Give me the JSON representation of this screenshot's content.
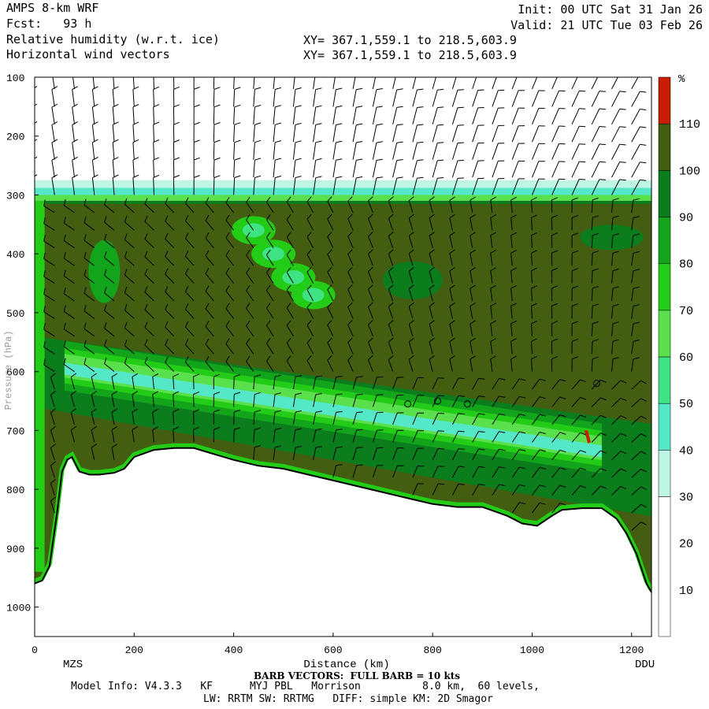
{
  "header": {
    "model": "AMPS 8-km WRF",
    "forecast": "Fcst:   93 h",
    "field1": "Relative humidity (w.r.t. ice)",
    "field2": "Horizontal wind vectors",
    "init": "Init: 00 UTC Sat 31 Jan 26",
    "valid": "Valid: 21 UTC Tue 03 Feb 26",
    "xy1": "XY= 367.1,559.1 to 218.5,603.9",
    "xy2": "XY= 367.1,559.1 to 218.5,603.9"
  },
  "footer": {
    "barb_note": "BARB VECTORS:  FULL BARB = 10 kts",
    "model_info": "Model Info: V4.3.3   KF      MYJ PBL   Morrison          8.0 km,  60 levels,",
    "physics": "LW: RRTM SW: RRTMG   DIFF: simple KM: 2D Smagor"
  },
  "chart_data": {
    "type": "heatmap",
    "title": "Relative humidity (w.r.t. ice)",
    "xlabel": "Distance (km)",
    "ylabel": "Pressure (hPa)",
    "xlim": [
      0,
      1240
    ],
    "ylim": [
      1050,
      100
    ],
    "x_ticks": [
      "0",
      "200",
      "400",
      "600",
      "800",
      "1000",
      "1200"
    ],
    "y_ticks": [
      "100",
      "200",
      "300",
      "400",
      "500",
      "600",
      "700",
      "800",
      "900",
      "1000"
    ],
    "endpoints": {
      "left": "MZS",
      "right": "DDU"
    },
    "colorbar": {
      "unit": "%",
      "ticks": [
        "10",
        "20",
        "30",
        "40",
        "50",
        "60",
        "70",
        "80",
        "90",
        "100",
        "110"
      ],
      "bins": [
        {
          "range": [
            0,
            30
          ],
          "color": "#ffffff"
        },
        {
          "range": [
            30,
            40
          ],
          "color": "#bff5e4"
        },
        {
          "range": [
            40,
            50
          ],
          "color": "#55e8c8"
        },
        {
          "range": [
            50,
            60
          ],
          "color": "#3ee383"
        },
        {
          "range": [
            60,
            70
          ],
          "color": "#59e04c"
        },
        {
          "range": [
            70,
            80
          ],
          "color": "#23cc16"
        },
        {
          "range": [
            80,
            90
          ],
          "color": "#12a51c"
        },
        {
          "range": [
            90,
            100
          ],
          "color": "#0c7d1c"
        },
        {
          "range": [
            100,
            110
          ],
          "color": "#435e10"
        },
        {
          "range": [
            110,
            120
          ],
          "color": "#c81e05"
        }
      ]
    },
    "terrain": [
      [
        0,
        960
      ],
      [
        15,
        955
      ],
      [
        30,
        930
      ],
      [
        45,
        840
      ],
      [
        55,
        770
      ],
      [
        65,
        750
      ],
      [
        75,
        745
      ],
      [
        90,
        770
      ],
      [
        110,
        775
      ],
      [
        130,
        775
      ],
      [
        160,
        772
      ],
      [
        180,
        765
      ],
      [
        200,
        745
      ],
      [
        240,
        733
      ],
      [
        280,
        730
      ],
      [
        320,
        730
      ],
      [
        360,
        740
      ],
      [
        400,
        750
      ],
      [
        450,
        760
      ],
      [
        500,
        765
      ],
      [
        550,
        775
      ],
      [
        600,
        785
      ],
      [
        650,
        795
      ],
      [
        700,
        805
      ],
      [
        750,
        815
      ],
      [
        800,
        825
      ],
      [
        850,
        830
      ],
      [
        900,
        830
      ],
      [
        950,
        845
      ],
      [
        980,
        858
      ],
      [
        1010,
        862
      ],
      [
        1040,
        845
      ],
      [
        1060,
        835
      ],
      [
        1100,
        832
      ],
      [
        1140,
        832
      ],
      [
        1170,
        850
      ],
      [
        1190,
        875
      ],
      [
        1210,
        910
      ],
      [
        1230,
        960
      ],
      [
        1240,
        975
      ]
    ],
    "cloud_top_hpa": 280,
    "wind_barb_columns_km": [
      0,
      40,
      80,
      120,
      160,
      200,
      240,
      280,
      320,
      360,
      400,
      440,
      480,
      520,
      560,
      600,
      640,
      680,
      720,
      760,
      800,
      840,
      880,
      920,
      960,
      1000,
      1040,
      1080,
      1120,
      1160,
      1200,
      1240
    ]
  }
}
